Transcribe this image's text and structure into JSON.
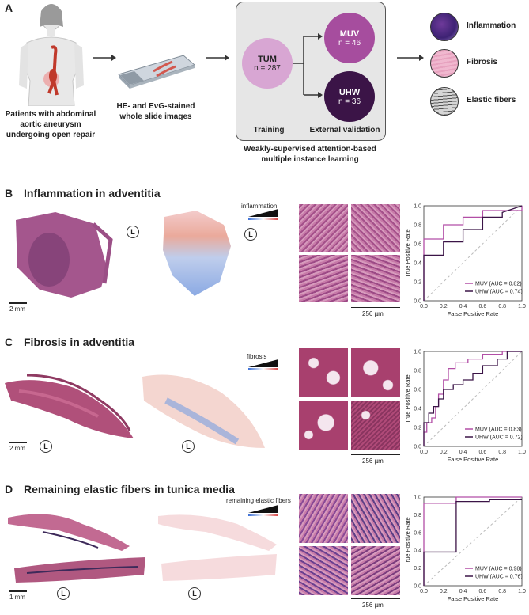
{
  "panelA": {
    "letter": "A",
    "patients": "Patients with abdominal aortic aneurysm undergoing open repair",
    "slides": "HE- and EvG-stained whole slide images",
    "tum": {
      "name": "TUM",
      "n": "n = 287"
    },
    "muv": {
      "name": "MUV",
      "n": "n = 46"
    },
    "uhw": {
      "name": "UHW",
      "n": "n = 36"
    },
    "training": "Training",
    "external": "External validation",
    "method": "Weakly-supervised attention-based multiple instance learning",
    "outputs": [
      "Inflammation",
      "Fibrosis",
      "Elastic fibers"
    ]
  },
  "panelB": {
    "letter": "B",
    "title": "Inflammation in adventitia",
    "scale": "2 mm",
    "tile_scale": "256 µm",
    "heatmap_label": "inflammation",
    "L": "L"
  },
  "panelC": {
    "letter": "C",
    "title": "Fibrosis in adventitia",
    "scale": "2 mm",
    "tile_scale": "256 µm",
    "heatmap_label": "fibrosis",
    "L": "L"
  },
  "panelD": {
    "letter": "D",
    "title": "Remaining elastic fibers in tunica media",
    "scale": "1 mm",
    "tile_scale": "256 µm",
    "heatmap_label": "remaining elastic fibers",
    "L": "L"
  },
  "colors": {
    "muv": "#b24ea6",
    "uhw": "#3b1447",
    "tum": "#d8a6d3",
    "he": "#b0507a"
  },
  "chart_data": [
    {
      "type": "line",
      "title": "",
      "xlabel": "False Positive Rate",
      "ylabel": "True Positive Rate",
      "xlim": [
        0,
        1
      ],
      "ylim": [
        0,
        1
      ],
      "ticks": [
        "0.0",
        "0.2",
        "0.4",
        "0.6",
        "0.8",
        "1.0"
      ],
      "series": [
        {
          "name": "MUV (AUC = 0.82)",
          "x": [
            0,
            0,
            0.2,
            0.2,
            0.4,
            0.4,
            0.6,
            0.6,
            1.0,
            1.0
          ],
          "y": [
            0,
            0.65,
            0.65,
            0.8,
            0.8,
            0.88,
            0.88,
            0.95,
            0.95,
            1.0
          ]
        },
        {
          "name": "UHW (AUC = 0.74)",
          "x": [
            0,
            0,
            0.2,
            0.2,
            0.4,
            0.4,
            0.6,
            0.6,
            0.8,
            0.8,
            1.0
          ],
          "y": [
            0,
            0.48,
            0.48,
            0.62,
            0.62,
            0.75,
            0.75,
            0.88,
            0.88,
            0.93,
            1.0
          ]
        }
      ],
      "legend": "bottom-right"
    },
    {
      "type": "line",
      "title": "",
      "xlabel": "False Positive Rate",
      "ylabel": "True Positive Rate",
      "xlim": [
        0,
        1
      ],
      "ylim": [
        0,
        1
      ],
      "ticks": [
        "0.0",
        "0.2",
        "0.4",
        "0.6",
        "0.8",
        "1.0"
      ],
      "series": [
        {
          "name": "MUV (AUC = 0.83)",
          "x": [
            0,
            0,
            0.03,
            0.03,
            0.08,
            0.08,
            0.12,
            0.12,
            0.15,
            0.15,
            0.2,
            0.2,
            0.25,
            0.25,
            0.32,
            0.32,
            0.45,
            0.45,
            0.6,
            0.6,
            0.8,
            0.8,
            1.0
          ],
          "y": [
            0,
            0.15,
            0.15,
            0.25,
            0.25,
            0.3,
            0.3,
            0.42,
            0.42,
            0.55,
            0.55,
            0.7,
            0.7,
            0.82,
            0.82,
            0.88,
            0.88,
            0.92,
            0.92,
            0.97,
            0.97,
            1.0,
            1.0
          ]
        },
        {
          "name": "UHW (AUC = 0.72)",
          "x": [
            0,
            0,
            0.05,
            0.05,
            0.1,
            0.1,
            0.15,
            0.15,
            0.2,
            0.2,
            0.3,
            0.3,
            0.4,
            0.4,
            0.5,
            0.5,
            0.6,
            0.6,
            0.75,
            0.75,
            0.85,
            0.85,
            1.0
          ],
          "y": [
            0,
            0.25,
            0.25,
            0.35,
            0.35,
            0.42,
            0.42,
            0.5,
            0.5,
            0.6,
            0.6,
            0.65,
            0.65,
            0.7,
            0.7,
            0.77,
            0.77,
            0.85,
            0.85,
            0.92,
            0.92,
            1.0,
            1.0
          ]
        }
      ],
      "legend": "bottom-right"
    },
    {
      "type": "line",
      "title": "",
      "xlabel": "False Positive Rate",
      "ylabel": "True Positive Rate",
      "xlim": [
        0,
        1
      ],
      "ylim": [
        0,
        1
      ],
      "ticks": [
        "0.0",
        "0.2",
        "0.4",
        "0.6",
        "0.8",
        "1.0"
      ],
      "series": [
        {
          "name": "MUV (AUC = 0.98)",
          "x": [
            0,
            0,
            0.33,
            0.33,
            1.0
          ],
          "y": [
            0,
            0.93,
            0.93,
            1.0,
            1.0
          ]
        },
        {
          "name": "UHW (AUC = 0.76)",
          "x": [
            0,
            0,
            0.33,
            0.33,
            0.67,
            0.67,
            1.0
          ],
          "y": [
            0,
            0.38,
            0.38,
            0.95,
            0.95,
            0.97,
            0.97
          ]
        }
      ],
      "legend": "bottom-right"
    }
  ]
}
